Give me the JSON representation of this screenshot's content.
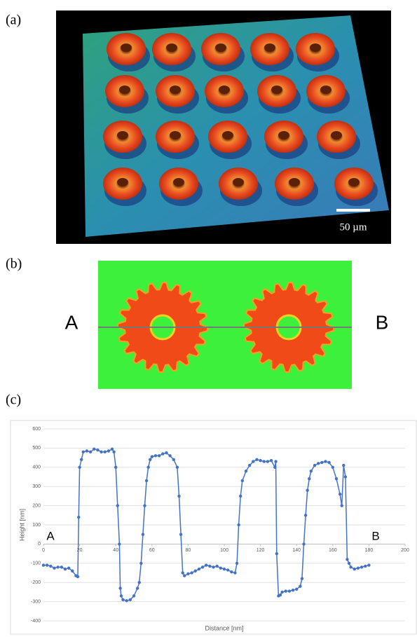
{
  "figure": {
    "panel_labels": [
      "(a)",
      "(b)",
      "(c)"
    ],
    "scale_bar": "50 µm",
    "profile_ends": [
      "A",
      "B"
    ]
  },
  "chart_data": {
    "type": "line",
    "x_label": "Distance [nm]",
    "y_label": "Height [nm]",
    "annotations": [
      "A",
      "B"
    ],
    "xlim": [
      0,
      200
    ],
    "xticks": [
      0,
      20,
      40,
      60,
      80,
      100,
      120,
      140,
      160,
      180,
      200
    ],
    "ylim": [
      -400,
      600
    ],
    "yticks": [
      -400,
      -300,
      -200,
      -100,
      0,
      100,
      200,
      300,
      400,
      500,
      600
    ],
    "grid": true,
    "series": [
      {
        "color": "#4472c4",
        "x": [
          0,
          2,
          4,
          6,
          8,
          10,
          12,
          14,
          16,
          18,
          19,
          19.5,
          20,
          21,
          22,
          24,
          26,
          28,
          30,
          32,
          34,
          36,
          38,
          39,
          40,
          41,
          42,
          42.5,
          43,
          44,
          46,
          48,
          50,
          52,
          53,
          54,
          55,
          56,
          57,
          58,
          59,
          60,
          62,
          64,
          66,
          68,
          70,
          72,
          74,
          75,
          76,
          77,
          78,
          80,
          82,
          84,
          86,
          88,
          90,
          92,
          94,
          96,
          98,
          100,
          102,
          104,
          106,
          107,
          108,
          109,
          110,
          112,
          114,
          116,
          118,
          120,
          122,
          124,
          126,
          128,
          128.5,
          129,
          130,
          131,
          132,
          134,
          136,
          138,
          140,
          142,
          143,
          144,
          145,
          146,
          147,
          148,
          150,
          152,
          154,
          156,
          158,
          160,
          162,
          164,
          165,
          166,
          167,
          168,
          169,
          170,
          172,
          174,
          176,
          178,
          180
        ],
        "values": [
          -110,
          -110,
          -115,
          -125,
          -120,
          -120,
          -130,
          -125,
          -140,
          -165,
          -170,
          140,
          400,
          440,
          480,
          485,
          480,
          495,
          490,
          480,
          480,
          485,
          495,
          480,
          400,
          200,
          0,
          -230,
          -270,
          -290,
          -295,
          -290,
          -270,
          -230,
          -200,
          -100,
          50,
          200,
          330,
          400,
          440,
          455,
          460,
          460,
          470,
          475,
          460,
          440,
          400,
          250,
          50,
          -150,
          -165,
          -155,
          -150,
          -140,
          -130,
          -120,
          -110,
          -115,
          -120,
          -115,
          -125,
          -130,
          -135,
          -145,
          -150,
          -100,
          100,
          250,
          330,
          380,
          410,
          430,
          440,
          435,
          430,
          430,
          435,
          400,
          430,
          -50,
          -270,
          -265,
          -250,
          -245,
          -245,
          -240,
          -235,
          -220,
          -180,
          0,
          150,
          280,
          340,
          380,
          410,
          420,
          425,
          430,
          425,
          400,
          340,
          260,
          200,
          410,
          350,
          -80,
          -100,
          -120,
          -130,
          -125,
          -120,
          -115,
          -110
        ]
      }
    ]
  }
}
